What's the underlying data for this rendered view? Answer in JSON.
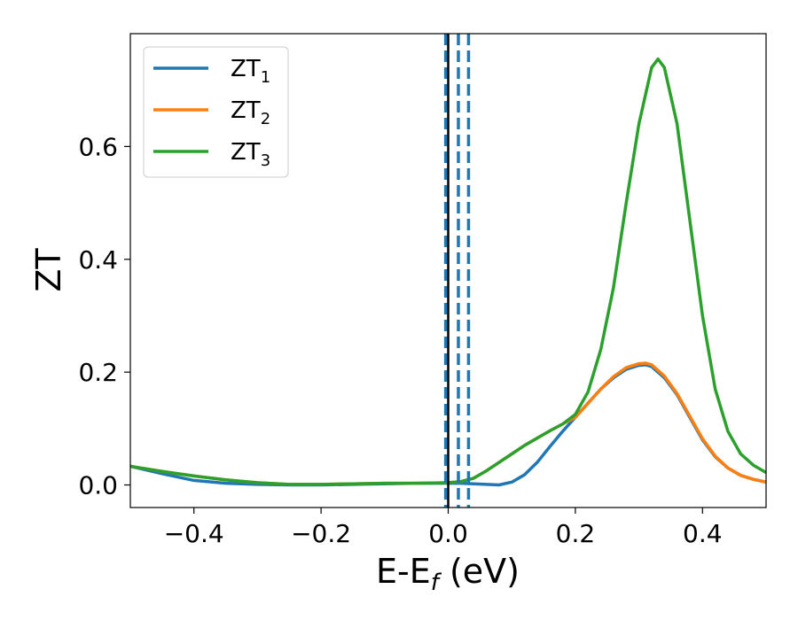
{
  "chart_data": {
    "type": "line",
    "title": "",
    "xlabel_main": "E-E",
    "xlabel_sub": "f",
    "xlabel_unit": " (eV)",
    "ylabel": "ZT",
    "xlim": [
      -0.5,
      0.5
    ],
    "ylim": [
      -0.04,
      0.8
    ],
    "grid": false,
    "legend_position": "top-left",
    "xticks": [
      -0.4,
      -0.2,
      0.0,
      0.2,
      0.4
    ],
    "xtick_labels": [
      "−0.4",
      "−0.2",
      "0.0",
      "0.2",
      "0.4"
    ],
    "yticks": [
      0.0,
      0.2,
      0.4,
      0.6
    ],
    "ytick_labels": [
      "0.0",
      "0.2",
      "0.4",
      "0.6"
    ],
    "vertical_lines": [
      {
        "x": -0.004,
        "style": "dashed",
        "color": "#1f77b4"
      },
      {
        "x": 0.0,
        "style": "solid",
        "color": "#000000"
      },
      {
        "x": 0.016,
        "style": "dashed",
        "color": "#1f77b4"
      },
      {
        "x": 0.032,
        "style": "dashed",
        "color": "#1f77b4"
      }
    ],
    "series": [
      {
        "name": "ZT",
        "subscript": "1",
        "color": "#1f77b4",
        "x": [
          -0.5,
          -0.45,
          -0.4,
          -0.35,
          -0.3,
          -0.25,
          -0.2,
          -0.15,
          -0.1,
          -0.05,
          0.0,
          0.02,
          0.04,
          0.06,
          0.08,
          0.1,
          0.12,
          0.14,
          0.16,
          0.18,
          0.2,
          0.22,
          0.24,
          0.26,
          0.28,
          0.3,
          0.31,
          0.32,
          0.34,
          0.36,
          0.38,
          0.4,
          0.42,
          0.44,
          0.46,
          0.48,
          0.5
        ],
        "y": [
          0.033,
          0.02,
          0.008,
          0.003,
          0.001,
          0.0,
          0.0,
          0.001,
          0.002,
          0.003,
          0.003,
          0.003,
          0.002,
          0.001,
          0.0,
          0.005,
          0.018,
          0.04,
          0.068,
          0.095,
          0.12,
          0.145,
          0.17,
          0.19,
          0.205,
          0.212,
          0.213,
          0.21,
          0.19,
          0.16,
          0.12,
          0.08,
          0.05,
          0.03,
          0.017,
          0.01,
          0.005
        ]
      },
      {
        "name": "ZT",
        "subscript": "2",
        "color": "#ff7f0e",
        "x": [
          -0.5,
          -0.45,
          -0.4,
          -0.35,
          -0.3,
          -0.25,
          -0.2,
          -0.15,
          -0.1,
          -0.05,
          0.0,
          0.02,
          0.04,
          0.06,
          0.08,
          0.1,
          0.12,
          0.14,
          0.16,
          0.18,
          0.2,
          0.22,
          0.24,
          0.26,
          0.28,
          0.3,
          0.31,
          0.32,
          0.34,
          0.36,
          0.38,
          0.4,
          0.42,
          0.44,
          0.46,
          0.48,
          0.5
        ],
        "y": [
          0.033,
          0.024,
          0.016,
          0.009,
          0.004,
          0.001,
          0.001,
          0.002,
          0.003,
          0.003,
          0.004,
          0.006,
          0.012,
          0.025,
          0.04,
          0.055,
          0.07,
          0.083,
          0.096,
          0.108,
          0.12,
          0.145,
          0.17,
          0.192,
          0.208,
          0.215,
          0.216,
          0.213,
          0.193,
          0.162,
          0.122,
          0.082,
          0.051,
          0.03,
          0.017,
          0.01,
          0.005
        ]
      },
      {
        "name": "ZT",
        "subscript": "3",
        "color": "#2ca02c",
        "x": [
          -0.5,
          -0.45,
          -0.4,
          -0.35,
          -0.3,
          -0.25,
          -0.2,
          -0.15,
          -0.1,
          -0.05,
          0.0,
          0.02,
          0.04,
          0.06,
          0.08,
          0.1,
          0.12,
          0.14,
          0.16,
          0.18,
          0.2,
          0.22,
          0.24,
          0.26,
          0.28,
          0.3,
          0.32,
          0.33,
          0.34,
          0.36,
          0.38,
          0.4,
          0.42,
          0.44,
          0.46,
          0.48,
          0.5
        ],
        "y": [
          0.033,
          0.024,
          0.016,
          0.009,
          0.004,
          0.001,
          0.001,
          0.002,
          0.003,
          0.003,
          0.004,
          0.006,
          0.012,
          0.025,
          0.04,
          0.055,
          0.07,
          0.083,
          0.096,
          0.108,
          0.125,
          0.165,
          0.24,
          0.35,
          0.5,
          0.64,
          0.74,
          0.755,
          0.74,
          0.64,
          0.47,
          0.3,
          0.17,
          0.095,
          0.055,
          0.035,
          0.022
        ]
      }
    ]
  }
}
